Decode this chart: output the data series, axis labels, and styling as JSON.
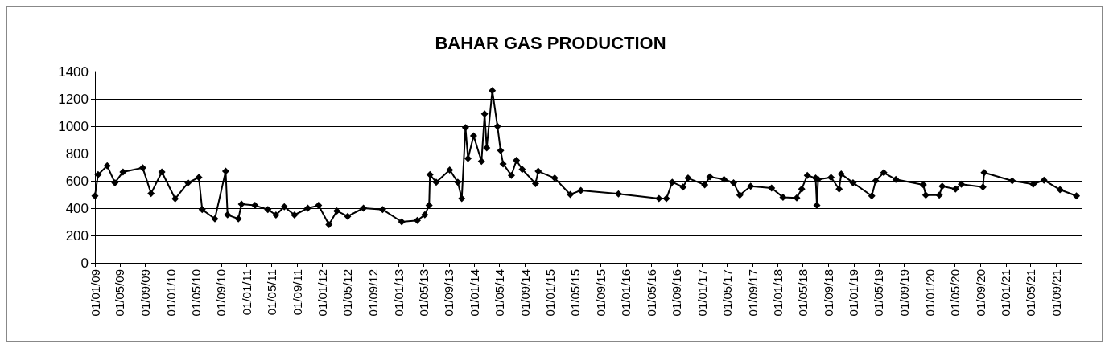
{
  "chart_data": {
    "type": "line",
    "title": "BAHAR GAS PRODUCTION",
    "marker": "diamond",
    "line_style": "solid",
    "grid": "y",
    "legend": false,
    "x": [
      "2009-01-01",
      "2009-01-16",
      "2009-03-01",
      "2009-04-07",
      "2009-05-16",
      "2009-08-19",
      "2009-09-28",
      "2009-11-19",
      "2010-01-22",
      "2010-03-25",
      "2010-05-16",
      "2010-06-01",
      "2010-08-01",
      "2010-09-22",
      "2010-10-01",
      "2010-11-22",
      "2010-12-07",
      "2011-02-10",
      "2011-04-13",
      "2011-05-22",
      "2011-07-01",
      "2011-08-19",
      "2011-10-22",
      "2011-12-13",
      "2012-02-01",
      "2012-03-10",
      "2012-05-01",
      "2012-07-16",
      "2012-10-16",
      "2013-01-16",
      "2013-04-01",
      "2013-05-07",
      "2013-05-28",
      "2013-06-01",
      "2013-07-01",
      "2013-09-04",
      "2013-10-13",
      "2013-11-01",
      "2013-11-19",
      "2013-12-01",
      "2013-12-28",
      "2014-02-04",
      "2014-02-19",
      "2014-03-01",
      "2014-03-28",
      "2014-04-22",
      "2014-05-07",
      "2014-05-19",
      "2014-06-28",
      "2014-07-22",
      "2014-08-19",
      "2014-10-22",
      "2014-11-04",
      "2015-01-22",
      "2015-04-07",
      "2015-05-28",
      "2015-11-25",
      "2016-06-07",
      "2016-07-13",
      "2016-08-10",
      "2016-10-01",
      "2016-10-25",
      "2017-01-13",
      "2017-02-07",
      "2017-04-16",
      "2017-06-01",
      "2017-07-01",
      "2017-08-22",
      "2017-12-01",
      "2018-01-25",
      "2018-04-01",
      "2018-04-25",
      "2018-05-22",
      "2018-07-01",
      "2018-07-07",
      "2018-07-13",
      "2018-09-13",
      "2018-10-22",
      "2018-11-01",
      "2018-12-28",
      "2019-03-28",
      "2019-04-16",
      "2019-05-25",
      "2019-07-22",
      "2019-12-01",
      "2019-12-13",
      "2020-02-16",
      "2020-03-01",
      "2020-05-04",
      "2020-06-01",
      "2020-09-13",
      "2020-09-19",
      "2021-02-01",
      "2021-05-13",
      "2021-07-04",
      "2021-09-19",
      "2021-12-07"
    ],
    "series": [
      {
        "color": "#000000",
        "values": [
          490,
          645,
          710,
          586,
          665,
          695,
          508,
          665,
          469,
          586,
          625,
          390,
          322,
          670,
          351,
          322,
          429,
          420,
          390,
          350,
          410,
          350,
          400,
          420,
          280,
          380,
          340,
          400,
          390,
          300,
          310,
          351,
          420,
          645,
          590,
          680,
          590,
          470,
          990,
          763,
          930,
          743,
          1090,
          841,
          1260,
          998,
          822,
          724,
          640,
          750,
          684,
          580,
          670,
          620,
          500,
          530,
          505,
          470,
          470,
          590,
          555,
          620,
          570,
          630,
          610,
          586,
          495,
          560,
          547,
          480,
          475,
          540,
          640,
          620,
          420,
          610,
          625,
          540,
          650,
          586,
          490,
          600,
          660,
          610,
          570,
          495,
          495,
          560,
          540,
          575,
          555,
          660,
          600,
          575,
          605,
          535,
          490
        ]
      }
    ],
    "xlim": [
      "2009-01-01",
      "2022-01-01"
    ],
    "xticks": [
      {
        "value": "2009-01-01",
        "label": "01/01/09"
      },
      {
        "value": "2009-05-01",
        "label": "01/05/09"
      },
      {
        "value": "2009-09-01",
        "label": "01/09/09"
      },
      {
        "value": "2010-01-01",
        "label": "01/01/10"
      },
      {
        "value": "2010-05-01",
        "label": "01/05/10"
      },
      {
        "value": "2010-09-01",
        "label": "01/09/10"
      },
      {
        "value": "2011-01-01",
        "label": "01/01/11"
      },
      {
        "value": "2011-05-01",
        "label": "01/05/11"
      },
      {
        "value": "2011-09-01",
        "label": "01/09/11"
      },
      {
        "value": "2012-01-01",
        "label": "01/01/12"
      },
      {
        "value": "2012-05-01",
        "label": "01/05/12"
      },
      {
        "value": "2012-09-01",
        "label": "01/09/12"
      },
      {
        "value": "2013-01-01",
        "label": "01/01/13"
      },
      {
        "value": "2013-05-01",
        "label": "01/05/13"
      },
      {
        "value": "2013-09-01",
        "label": "01/09/13"
      },
      {
        "value": "2014-01-01",
        "label": "01/01/14"
      },
      {
        "value": "2014-05-01",
        "label": "01/05/14"
      },
      {
        "value": "2014-09-01",
        "label": "01/09/14"
      },
      {
        "value": "2015-01-01",
        "label": "01/01/15"
      },
      {
        "value": "2015-05-01",
        "label": "01/05/15"
      },
      {
        "value": "2015-09-01",
        "label": "01/09/15"
      },
      {
        "value": "2016-01-01",
        "label": "01/01/16"
      },
      {
        "value": "2016-05-01",
        "label": "01/05/16"
      },
      {
        "value": "2016-09-01",
        "label": "01/09/16"
      },
      {
        "value": "2017-01-01",
        "label": "01/01/17"
      },
      {
        "value": "2017-05-01",
        "label": "01/05/17"
      },
      {
        "value": "2017-09-01",
        "label": "01/09/17"
      },
      {
        "value": "2018-01-01",
        "label": "01/01/18"
      },
      {
        "value": "2018-05-01",
        "label": "01/05/18"
      },
      {
        "value": "2018-09-01",
        "label": "01/09/18"
      },
      {
        "value": "2019-01-01",
        "label": "01/01/19"
      },
      {
        "value": "2019-05-01",
        "label": "01/05/19"
      },
      {
        "value": "2019-09-01",
        "label": "01/09/19"
      },
      {
        "value": "2020-01-01",
        "label": "01/01/20"
      },
      {
        "value": "2020-05-01",
        "label": "01/05/20"
      },
      {
        "value": "2020-09-01",
        "label": "01/09/20"
      },
      {
        "value": "2021-01-01",
        "label": "01/01/21"
      },
      {
        "value": "2021-05-01",
        "label": "01/05/21"
      },
      {
        "value": "2021-09-01",
        "label": "01/09/21"
      },
      {
        "value": "2022-01-01",
        "label": null
      }
    ],
    "ylim": [
      0,
      1400
    ],
    "yticks": [
      0,
      200,
      400,
      600,
      800,
      1000,
      1200,
      1400
    ]
  }
}
